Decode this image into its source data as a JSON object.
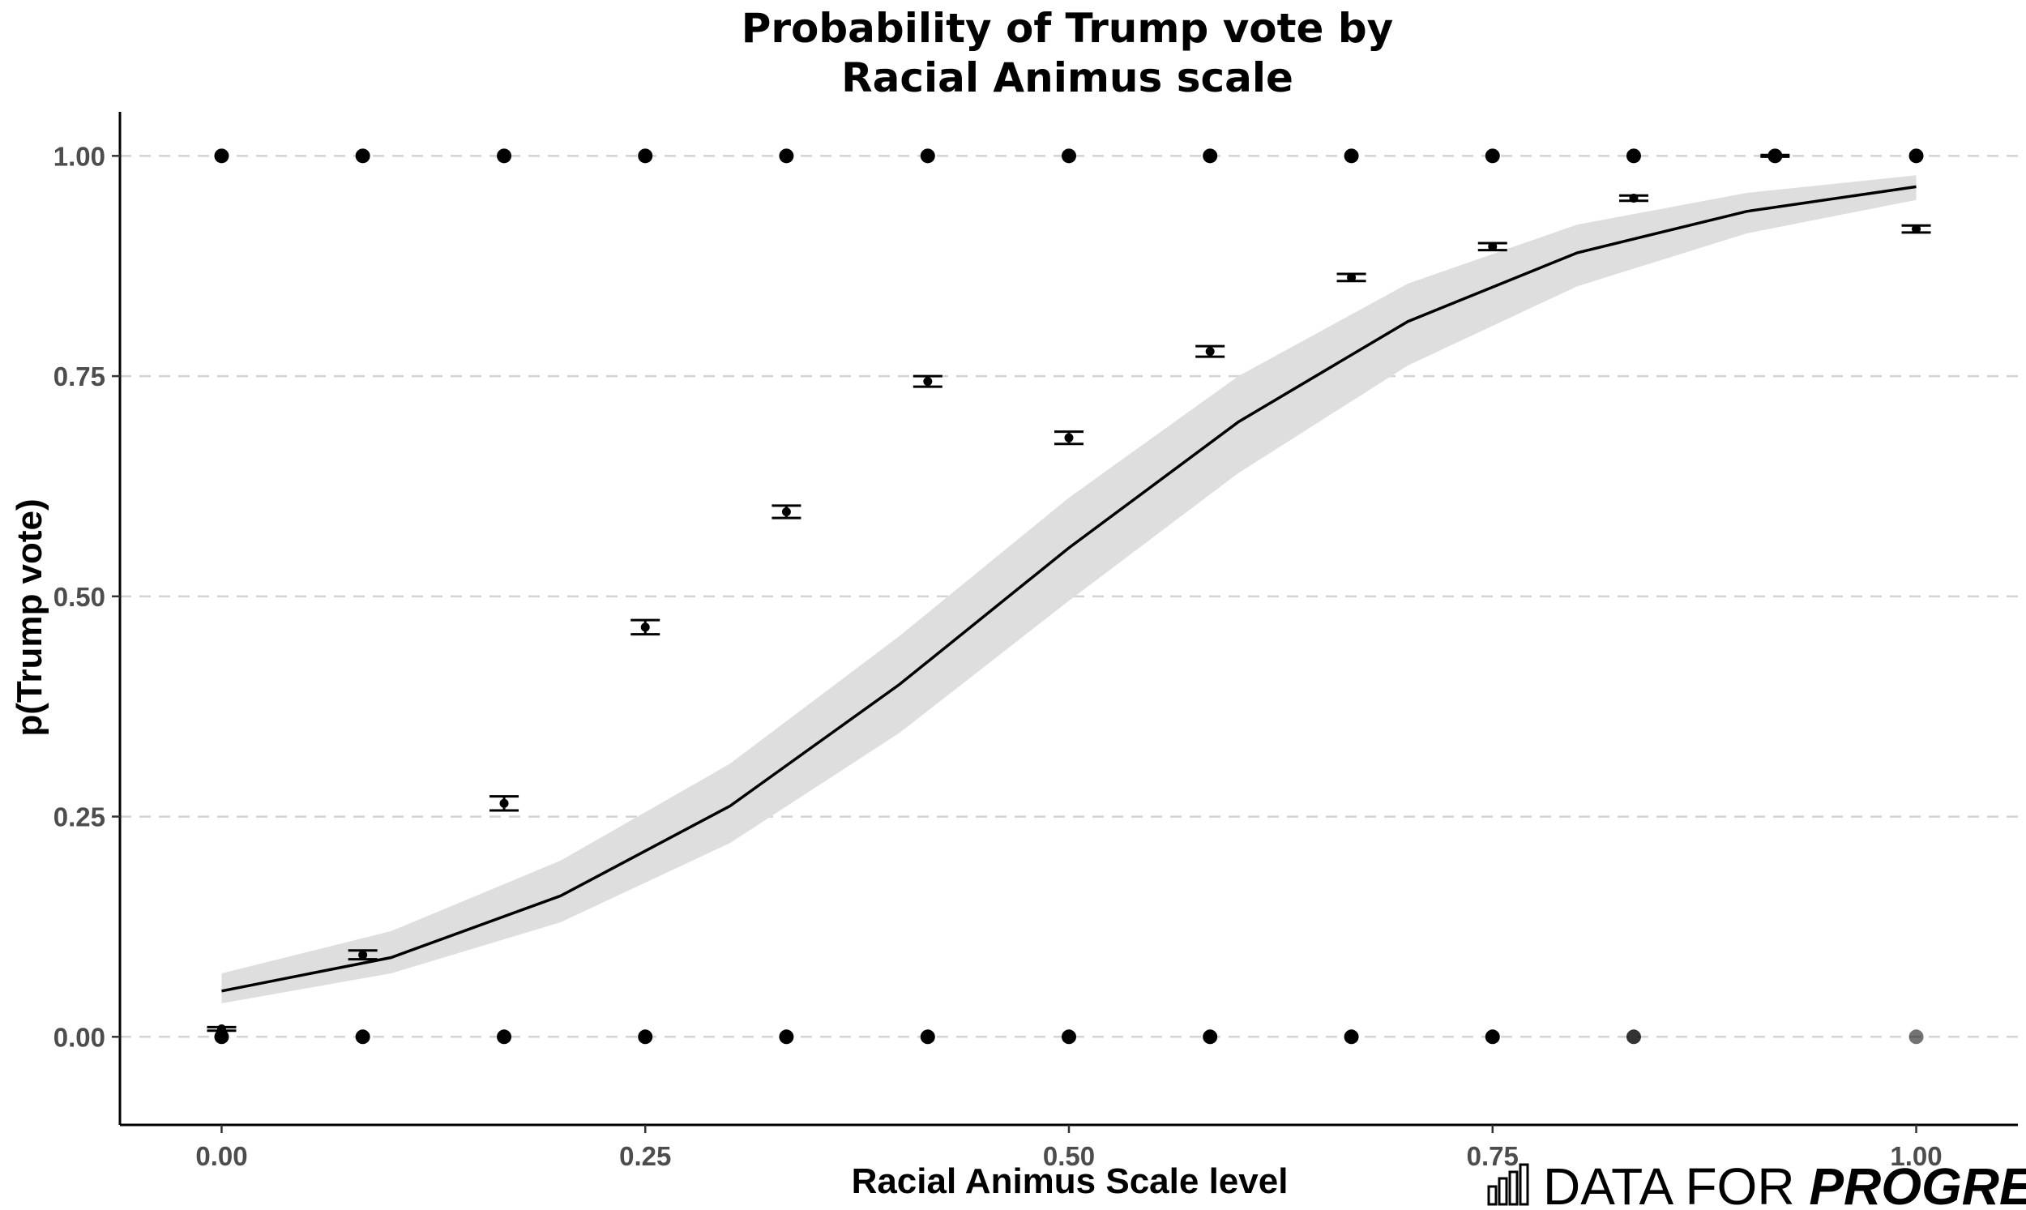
{
  "chart_data": {
    "type": "scatter",
    "title_lines": [
      "Probability of Trump vote by",
      "Racial Animus scale"
    ],
    "xlabel": "Racial Animus Scale level",
    "ylabel": "p(Trump vote)",
    "xlim": [
      -0.06,
      1.06
    ],
    "ylim": [
      -0.1,
      1.05
    ],
    "x_ticks": [
      0,
      0.25,
      0.5,
      0.75,
      1
    ],
    "x_tick_labels": [
      "0.00",
      "0.25",
      "0.50",
      "0.75",
      "1.00"
    ],
    "y_ticks": [
      0,
      0.25,
      0.5,
      0.75,
      1
    ],
    "y_tick_labels": [
      "0.00",
      "0.25",
      "0.50",
      "0.75",
      "1.00"
    ],
    "grid": "horizontal dashed",
    "series": [
      {
        "name": "individual responses (y=1)",
        "kind": "points",
        "x": [
          0,
          0.0833,
          0.1667,
          0.25,
          0.3333,
          0.4167,
          0.5,
          0.5833,
          0.6667,
          0.75,
          0.8333,
          0.9167,
          1
        ],
        "y": [
          1,
          1,
          1,
          1,
          1,
          1,
          1,
          1,
          1,
          1,
          1,
          1,
          1
        ]
      },
      {
        "name": "individual responses (y=0)",
        "kind": "points",
        "x": [
          0,
          0.0833,
          0.1667,
          0.25,
          0.3333,
          0.4167,
          0.5,
          0.5833,
          0.6667,
          0.75,
          0.8333,
          1
        ],
        "y": [
          0,
          0,
          0,
          0,
          0,
          0,
          0,
          0,
          0,
          0,
          0,
          0
        ],
        "opacity": [
          1,
          1,
          1,
          1,
          1,
          1,
          1,
          1,
          1,
          1,
          0.8,
          0.55
        ]
      },
      {
        "name": "observed proportion",
        "kind": "mean_with_error",
        "x": [
          0,
          0.0833,
          0.1667,
          0.25,
          0.3333,
          0.4167,
          0.5,
          0.5833,
          0.6667,
          0.75,
          0.8333,
          0.9167,
          1
        ],
        "y": [
          0.009,
          0.093,
          0.265,
          0.465,
          0.596,
          0.744,
          0.68,
          0.778,
          0.862,
          0.897,
          0.952,
          1.0,
          0.917
        ],
        "err": [
          0.002,
          0.005,
          0.008,
          0.008,
          0.007,
          0.006,
          0.007,
          0.006,
          0.004,
          0.004,
          0.003,
          0.001,
          0.004
        ]
      },
      {
        "name": "logistic fit",
        "kind": "line_with_ribbon",
        "x": [
          0,
          0.1,
          0.2,
          0.3,
          0.4,
          0.5,
          0.6,
          0.7,
          0.8,
          0.9,
          1
        ],
        "y": [
          0.052,
          0.09,
          0.16,
          0.262,
          0.4,
          0.555,
          0.698,
          0.812,
          0.89,
          0.937,
          0.965
        ],
        "lower": [
          0.038,
          0.072,
          0.13,
          0.22,
          0.345,
          0.495,
          0.64,
          0.762,
          0.852,
          0.912,
          0.95
        ],
        "upper": [
          0.072,
          0.12,
          0.2,
          0.31,
          0.455,
          0.612,
          0.75,
          0.855,
          0.922,
          0.958,
          0.978
        ]
      }
    ],
    "colors": {
      "points": "#000000",
      "ribbon": "#dedede",
      "line": "#000000",
      "grid": "#d3d3d3"
    }
  },
  "branding": {
    "text_light": "DATA FOR ",
    "text_bold": "PROGRESS",
    "icon": "bar-chart-icon"
  }
}
